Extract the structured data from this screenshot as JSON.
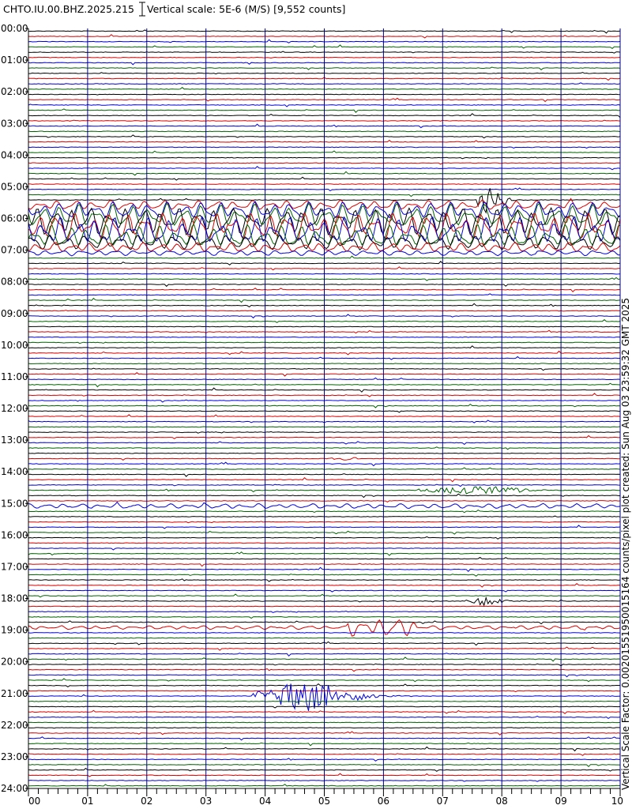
{
  "header": {
    "station": "CHTO.IU.00.BHZ.2025.215",
    "scale_label": "Vertical scale: 5E-6 (M/S) [9,552 counts]"
  },
  "side_note": "Vertical Scale Factor: 0.00201551950015164 counts/pixel plot created: Sun Aug 03 23:59:32 GMT 2025",
  "colors": {
    "background": "#ffffff",
    "gridline": "#000080",
    "trace_cycle": [
      "#000000",
      "#dd0000",
      "#0000dd",
      "#006400"
    ]
  },
  "chart_data": {
    "type": "line",
    "title": "CHTO.IU.00.BHZ.2025.215",
    "subtitle": "Vertical scale: 5E-6 (M/S) [9,552 counts]",
    "xlabel": "",
    "ylabel": "",
    "x_unit": "minutes",
    "xlim": [
      0,
      10
    ],
    "ylim": [
      "00:00",
      "24:00"
    ],
    "x_ticks": [
      "00",
      "01",
      "02",
      "03",
      "04",
      "05",
      "06",
      "07",
      "08",
      "09",
      "10"
    ],
    "y_ticks": [
      "00:00",
      "01:00",
      "02:00",
      "03:00",
      "04:00",
      "05:00",
      "06:00",
      "07:00",
      "08:00",
      "09:00",
      "10:00",
      "11:00",
      "12:00",
      "13:00",
      "14:00",
      "15:00",
      "16:00",
      "17:00",
      "18:00",
      "19:00",
      "20:00",
      "21:00",
      "22:00",
      "23:00",
      "24:00"
    ],
    "traces_per_hour": 6,
    "minutes_per_trace": 10,
    "color_order": [
      "black",
      "red",
      "blue",
      "green"
    ],
    "grid": true,
    "notable_signals": [
      {
        "hour": 5,
        "trace": 3,
        "start_min": 0.0,
        "end_min": 10.0,
        "type": "microseism",
        "amplitude": 0.9
      },
      {
        "hour": 5,
        "trace": 4,
        "start_min": 0.0,
        "end_min": 10.0,
        "type": "microseism",
        "amplitude": 1.6
      },
      {
        "hour": 5,
        "trace": 5,
        "start_min": 0.0,
        "end_min": 10.0,
        "type": "microseism",
        "amplitude": 2.2
      },
      {
        "hour": 6,
        "trace": 0,
        "start_min": 0.0,
        "end_min": 10.0,
        "type": "microseism",
        "amplitude": 2.6
      },
      {
        "hour": 6,
        "trace": 1,
        "start_min": 0.0,
        "end_min": 10.0,
        "type": "microseism",
        "amplitude": 2.6
      },
      {
        "hour": 6,
        "trace": 2,
        "start_min": 0.0,
        "end_min": 10.0,
        "type": "microseism",
        "amplitude": 2.6
      },
      {
        "hour": 6,
        "trace": 3,
        "start_min": 0.0,
        "end_min": 10.0,
        "type": "microseism",
        "amplitude": 2.2
      },
      {
        "hour": 6,
        "trace": 4,
        "start_min": 0.0,
        "end_min": 10.0,
        "type": "microseism",
        "amplitude": 1.4
      },
      {
        "hour": 6,
        "trace": 5,
        "start_min": 0.0,
        "end_min": 10.0,
        "type": "microseism",
        "amplitude": 0.9
      },
      {
        "hour": 7,
        "trace": 0,
        "start_min": 0.0,
        "end_min": 10.0,
        "type": "microseism",
        "amplitude": 0.5
      },
      {
        "hour": 5,
        "trace": 2,
        "start_min": 7.6,
        "end_min": 8.4,
        "type": "event",
        "amplitude": 4.5
      },
      {
        "hour": 13,
        "trace": 3,
        "start_min": 5.1,
        "end_min": 6.0,
        "type": "event",
        "amplitude": 0.35
      },
      {
        "hour": 14,
        "trace": 3,
        "start_min": 6.6,
        "end_min": 10.0,
        "type": "event",
        "amplitude": 0.9
      },
      {
        "hour": 15,
        "trace": 0,
        "start_min": 0.0,
        "end_min": 10.0,
        "type": "microseism",
        "amplitude": 0.45
      },
      {
        "hour": 18,
        "trace": 0,
        "start_min": 7.4,
        "end_min": 8.6,
        "type": "event",
        "amplitude": 1.0
      },
      {
        "hour": 18,
        "trace": 5,
        "start_min": 0.0,
        "end_min": 10.0,
        "type": "microseism",
        "amplitude": 0.35
      },
      {
        "hour": 18,
        "trace": 5,
        "start_min": 5.4,
        "end_min": 6.6,
        "type": "microseism",
        "amplitude": 1.4
      },
      {
        "hour": 21,
        "trace": 0,
        "start_min": 3.8,
        "end_min": 7.0,
        "type": "event",
        "amplitude": 3.2
      }
    ]
  }
}
